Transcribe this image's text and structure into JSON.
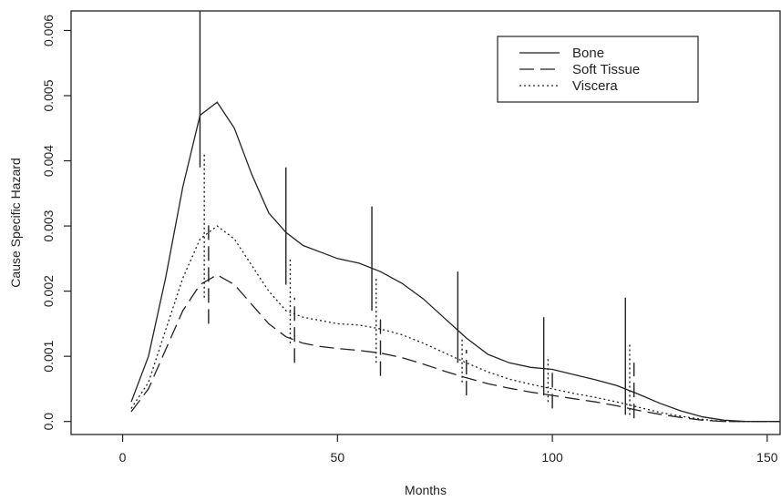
{
  "chart_data": {
    "type": "line",
    "xlabel": "Months",
    "ylabel": "Cause Specific Hazard",
    "xlim": [
      -12,
      153
    ],
    "ylim": [
      -0.0002,
      0.0063
    ],
    "x_ticks": [
      0,
      50,
      100,
      150
    ],
    "x_tick_labels": [
      "0",
      "50",
      "100",
      "150"
    ],
    "y_ticks": [
      0.0,
      0.001,
      0.002,
      0.003,
      0.004,
      0.005,
      0.006
    ],
    "y_tick_labels": [
      "0.0",
      "0.001",
      "0.002",
      "0.003",
      "0.004",
      "0.005",
      "0.006"
    ],
    "grid": false,
    "legend_position": "top-right",
    "colors": {
      "line": "#222222",
      "frame": "#222222",
      "background": "#ffffff"
    },
    "series": [
      {
        "name": "Bone",
        "dash": "solid",
        "points": [
          [
            2,
            0.0003
          ],
          [
            6,
            0.001
          ],
          [
            10,
            0.0022
          ],
          [
            14,
            0.0036
          ],
          [
            18,
            0.0047
          ],
          [
            22,
            0.0049
          ],
          [
            26,
            0.0045
          ],
          [
            30,
            0.0038
          ],
          [
            34,
            0.0032
          ],
          [
            38,
            0.0029
          ],
          [
            42,
            0.0027
          ],
          [
            46,
            0.0026
          ],
          [
            50,
            0.0025
          ],
          [
            55,
            0.00243
          ],
          [
            60,
            0.0023
          ],
          [
            65,
            0.00212
          ],
          [
            70,
            0.00188
          ],
          [
            75,
            0.00158
          ],
          [
            80,
            0.00128
          ],
          [
            85,
            0.00103
          ],
          [
            90,
            0.0009
          ],
          [
            95,
            0.00083
          ],
          [
            100,
            0.0008
          ],
          [
            105,
            0.00072
          ],
          [
            110,
            0.00064
          ],
          [
            115,
            0.00055
          ],
          [
            120,
            0.00042
          ],
          [
            125,
            0.00028
          ],
          [
            130,
            0.00016
          ],
          [
            135,
            7e-05
          ],
          [
            140,
            2e-05
          ],
          [
            145,
            0.0
          ],
          [
            150,
            0.0
          ],
          [
            153,
            0.0
          ]
        ],
        "error_bars": [
          {
            "x": 18,
            "low": 0.0039,
            "high": 0.0063
          },
          {
            "x": 38,
            "low": 0.0021,
            "high": 0.0039
          },
          {
            "x": 58,
            "low": 0.0017,
            "high": 0.0033
          },
          {
            "x": 78,
            "low": 0.0009,
            "high": 0.0023
          },
          {
            "x": 98,
            "low": 0.0004,
            "high": 0.0016
          },
          {
            "x": 117,
            "low": 0.0001,
            "high": 0.0019
          }
        ]
      },
      {
        "name": "Soft Tissue",
        "dash": "long-dash",
        "points": [
          [
            2,
            0.00015
          ],
          [
            6,
            0.0005
          ],
          [
            10,
            0.0011
          ],
          [
            14,
            0.0017
          ],
          [
            18,
            0.0021
          ],
          [
            22,
            0.00225
          ],
          [
            26,
            0.0021
          ],
          [
            30,
            0.0018
          ],
          [
            34,
            0.0015
          ],
          [
            38,
            0.0013
          ],
          [
            42,
            0.0012
          ],
          [
            46,
            0.00115
          ],
          [
            50,
            0.00112
          ],
          [
            55,
            0.00109
          ],
          [
            60,
            0.00105
          ],
          [
            65,
            0.00098
          ],
          [
            70,
            0.00088
          ],
          [
            75,
            0.00077
          ],
          [
            80,
            0.00067
          ],
          [
            85,
            0.00058
          ],
          [
            90,
            0.00051
          ],
          [
            95,
            0.00045
          ],
          [
            100,
            0.0004
          ],
          [
            105,
            0.00035
          ],
          [
            110,
            0.0003
          ],
          [
            115,
            0.00024
          ],
          [
            120,
            0.00017
          ],
          [
            125,
            0.00011
          ],
          [
            130,
            6e-05
          ],
          [
            135,
            2e-05
          ],
          [
            140,
            0.0
          ],
          [
            145,
            0.0
          ],
          [
            150,
            0.0
          ],
          [
            153,
            0.0
          ]
        ],
        "error_bars": [
          {
            "x": 20,
            "low": 0.0015,
            "high": 0.0031
          },
          {
            "x": 40,
            "low": 0.0009,
            "high": 0.0019
          },
          {
            "x": 60,
            "low": 0.0007,
            "high": 0.0016
          },
          {
            "x": 80,
            "low": 0.0004,
            "high": 0.0011
          },
          {
            "x": 100,
            "low": 0.0002,
            "high": 0.0008
          },
          {
            "x": 119,
            "low": 5e-05,
            "high": 0.0009
          }
        ]
      },
      {
        "name": "Viscera",
        "dash": "dotted",
        "points": [
          [
            2,
            0.0002
          ],
          [
            6,
            0.0006
          ],
          [
            10,
            0.0014
          ],
          [
            14,
            0.0022
          ],
          [
            18,
            0.0028
          ],
          [
            22,
            0.003
          ],
          [
            26,
            0.0028
          ],
          [
            30,
            0.0024
          ],
          [
            34,
            0.002
          ],
          [
            38,
            0.0017
          ],
          [
            42,
            0.0016
          ],
          [
            46,
            0.00155
          ],
          [
            50,
            0.0015
          ],
          [
            55,
            0.00148
          ],
          [
            60,
            0.00142
          ],
          [
            65,
            0.00133
          ],
          [
            70,
            0.0012
          ],
          [
            75,
            0.00105
          ],
          [
            80,
            0.0009
          ],
          [
            85,
            0.00076
          ],
          [
            90,
            0.00065
          ],
          [
            95,
            0.00057
          ],
          [
            100,
            0.0005
          ],
          [
            105,
            0.00043
          ],
          [
            110,
            0.00037
          ],
          [
            115,
            0.0003
          ],
          [
            120,
            0.00022
          ],
          [
            125,
            0.00014
          ],
          [
            130,
            8e-05
          ],
          [
            135,
            3e-05
          ],
          [
            140,
            0.0
          ],
          [
            145,
            0.0
          ],
          [
            150,
            0.0
          ],
          [
            153,
            0.0
          ]
        ],
        "error_bars": [
          {
            "x": 19,
            "low": 0.0019,
            "high": 0.0041
          },
          {
            "x": 39,
            "low": 0.0012,
            "high": 0.0025
          },
          {
            "x": 59,
            "low": 0.0009,
            "high": 0.0022
          },
          {
            "x": 79,
            "low": 0.0006,
            "high": 0.0013
          },
          {
            "x": 99,
            "low": 0.0003,
            "high": 0.001
          },
          {
            "x": 118,
            "low": 0.0001,
            "high": 0.0012
          }
        ]
      }
    ]
  }
}
